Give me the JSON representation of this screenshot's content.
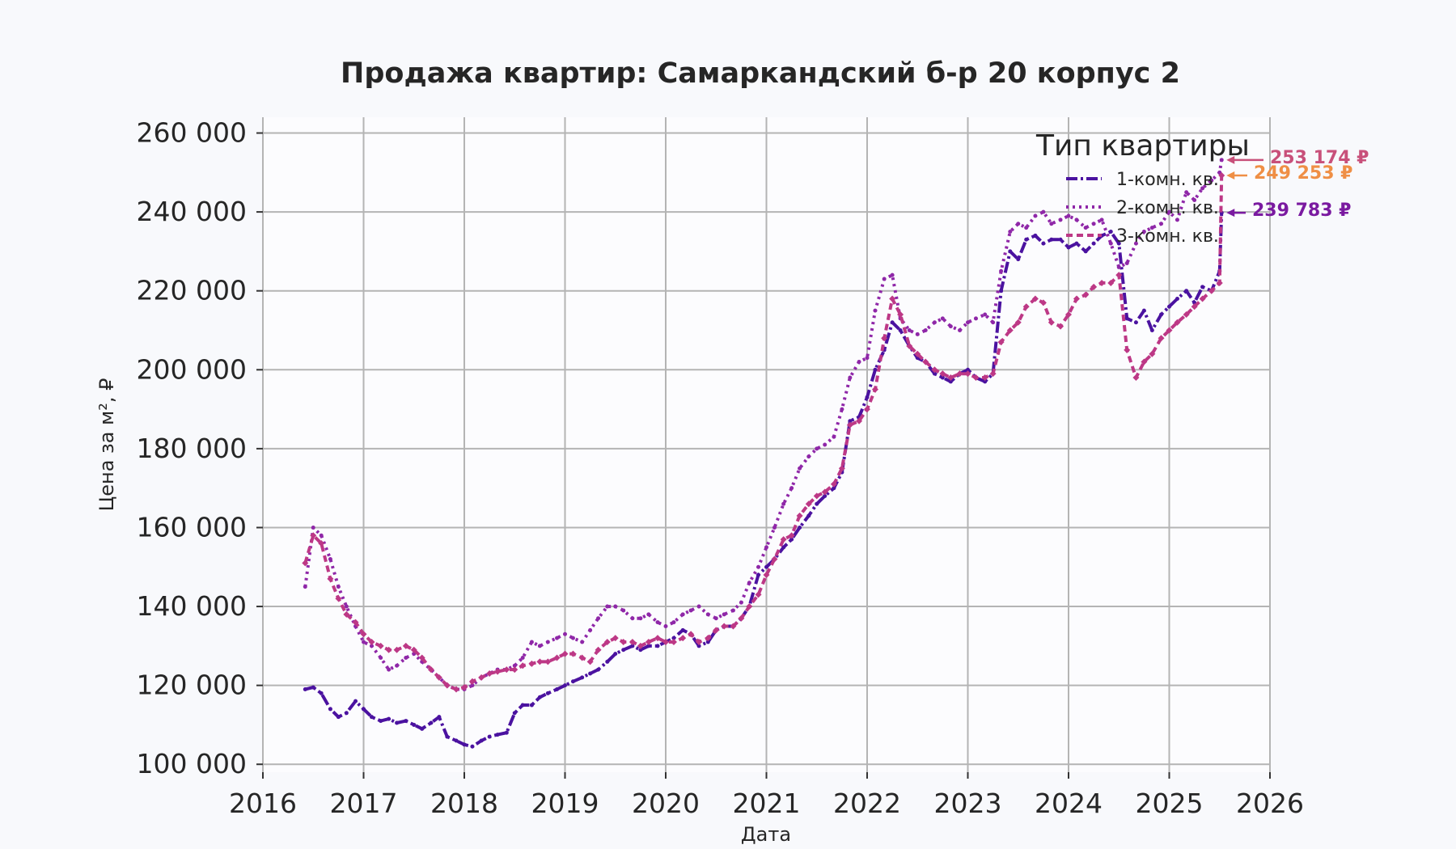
{
  "chart_data": {
    "type": "line",
    "title": "Продажа квартир: Самаркандский б-р 20 корпус 2",
    "xlabel": "Дата",
    "ylabel": "Цена за м², ₽",
    "xlim": [
      2016,
      2026
    ],
    "ylim": [
      98000,
      264000
    ],
    "x_ticks": [
      "2016",
      "2017",
      "2018",
      "2019",
      "2020",
      "2021",
      "2022",
      "2023",
      "2024",
      "2025",
      "2026"
    ],
    "y_ticks": [
      "100 000",
      "120 000",
      "140 000",
      "160 000",
      "180 000",
      "200 000",
      "220 000",
      "240 000",
      "260 000"
    ],
    "grid": true,
    "legend": {
      "title": "Тип квартиры",
      "placement": "top-right",
      "entries": [
        "1-комн. кв.",
        "2-комн. кв.",
        "3-комн. кв."
      ]
    },
    "series": [
      {
        "name": "1-комн. кв.",
        "color": "#4b12a0",
        "line_style": "dash-dot",
        "x": [
          2016.42,
          2016.5,
          2016.58,
          2016.67,
          2016.75,
          2016.83,
          2016.92,
          2017.0,
          2017.08,
          2017.17,
          2017.25,
          2017.33,
          2017.42,
          2017.5,
          2017.58,
          2017.67,
          2017.75,
          2017.83,
          2017.92,
          2018.0,
          2018.08,
          2018.17,
          2018.25,
          2018.33,
          2018.42,
          2018.5,
          2018.58,
          2018.67,
          2018.75,
          2018.83,
          2018.92,
          2019.0,
          2019.08,
          2019.17,
          2019.25,
          2019.33,
          2019.42,
          2019.5,
          2019.58,
          2019.67,
          2019.75,
          2019.83,
          2019.92,
          2020.0,
          2020.08,
          2020.17,
          2020.25,
          2020.33,
          2020.42,
          2020.5,
          2020.58,
          2020.67,
          2020.75,
          2020.83,
          2020.92,
          2021.0,
          2021.08,
          2021.17,
          2021.25,
          2021.33,
          2021.42,
          2021.5,
          2021.58,
          2021.67,
          2021.75,
          2021.83,
          2021.92,
          2022.0,
          2022.08,
          2022.17,
          2022.25,
          2022.33,
          2022.42,
          2022.5,
          2022.58,
          2022.67,
          2022.75,
          2022.83,
          2022.92,
          2023.0,
          2023.08,
          2023.17,
          2023.25,
          2023.33,
          2023.42,
          2023.5,
          2023.58,
          2023.67,
          2023.75,
          2023.83,
          2023.92,
          2024.0,
          2024.08,
          2024.17,
          2024.25,
          2024.33,
          2024.42,
          2024.5,
          2024.58,
          2024.67,
          2024.75,
          2024.83,
          2024.92,
          2025.0,
          2025.08,
          2025.17,
          2025.25,
          2025.33,
          2025.42,
          2025.5,
          2025.52
        ],
        "values": [
          119000,
          119500,
          118000,
          114000,
          112000,
          113000,
          116000,
          114000,
          112000,
          111000,
          111500,
          110500,
          111000,
          110000,
          109000,
          110500,
          112000,
          107000,
          106000,
          105000,
          104500,
          106000,
          107000,
          107500,
          108000,
          113000,
          115000,
          115000,
          117000,
          118000,
          119000,
          120000,
          121000,
          122000,
          123000,
          124000,
          126000,
          128000,
          129000,
          130000,
          129000,
          130000,
          130000,
          131000,
          132000,
          134000,
          133000,
          130000,
          131000,
          134000,
          135000,
          135000,
          137000,
          140000,
          148000,
          150000,
          152000,
          155000,
          157000,
          160000,
          163000,
          166000,
          168000,
          170000,
          174000,
          187000,
          188000,
          193000,
          200000,
          205000,
          212000,
          210000,
          206000,
          203000,
          202000,
          199000,
          198000,
          197000,
          199000,
          200000,
          198000,
          197000,
          199000,
          220000,
          230000,
          228000,
          233000,
          234000,
          232000,
          233000,
          233000,
          231000,
          232000,
          230000,
          232000,
          234000,
          235000,
          232000,
          213000,
          212000,
          215000,
          210000,
          214000,
          216000,
          218000,
          220000,
          217000,
          221000,
          220000,
          225000,
          239783
        ]
      },
      {
        "name": "2-комн. кв.",
        "color": "#8f27a8",
        "line_style": "dotted",
        "x": [
          2016.42,
          2016.5,
          2016.58,
          2016.67,
          2016.75,
          2016.83,
          2016.92,
          2017.0,
          2017.08,
          2017.17,
          2017.25,
          2017.33,
          2017.42,
          2017.5,
          2017.58,
          2017.67,
          2017.75,
          2017.83,
          2017.92,
          2018.0,
          2018.08,
          2018.17,
          2018.25,
          2018.33,
          2018.42,
          2018.5,
          2018.58,
          2018.67,
          2018.75,
          2018.83,
          2018.92,
          2019.0,
          2019.08,
          2019.17,
          2019.25,
          2019.33,
          2019.42,
          2019.5,
          2019.58,
          2019.67,
          2019.75,
          2019.83,
          2019.92,
          2020.0,
          2020.08,
          2020.17,
          2020.25,
          2020.33,
          2020.42,
          2020.5,
          2020.58,
          2020.67,
          2020.75,
          2020.83,
          2020.92,
          2021.0,
          2021.08,
          2021.17,
          2021.25,
          2021.33,
          2021.42,
          2021.5,
          2021.58,
          2021.67,
          2021.75,
          2021.83,
          2021.92,
          2022.0,
          2022.08,
          2022.17,
          2022.25,
          2022.33,
          2022.42,
          2022.5,
          2022.58,
          2022.67,
          2022.75,
          2022.83,
          2022.92,
          2023.0,
          2023.08,
          2023.17,
          2023.25,
          2023.33,
          2023.42,
          2023.5,
          2023.58,
          2023.67,
          2023.75,
          2023.83,
          2023.92,
          2024.0,
          2024.08,
          2024.17,
          2024.25,
          2024.33,
          2024.42,
          2024.5,
          2024.58,
          2024.67,
          2024.75,
          2024.83,
          2024.92,
          2025.0,
          2025.08,
          2025.17,
          2025.25,
          2025.33,
          2025.42,
          2025.5,
          2025.52
        ],
        "values": [
          145000,
          160000,
          158000,
          152000,
          145000,
          140000,
          135000,
          131000,
          130000,
          127000,
          124000,
          125000,
          127000,
          128000,
          126000,
          124000,
          122000,
          120000,
          119000,
          119000,
          120000,
          122000,
          123000,
          124000,
          124000,
          125000,
          127000,
          131000,
          130000,
          131000,
          132000,
          133000,
          132000,
          131000,
          134000,
          137000,
          140000,
          140000,
          139000,
          137000,
          137000,
          138000,
          136000,
          135000,
          136000,
          138000,
          139000,
          140000,
          138000,
          137000,
          138000,
          139000,
          141000,
          146000,
          150000,
          155000,
          160000,
          166000,
          170000,
          175000,
          178000,
          180000,
          181000,
          183000,
          190000,
          198000,
          202000,
          203000,
          215000,
          223000,
          224000,
          213000,
          210000,
          209000,
          210000,
          212000,
          213000,
          211000,
          210000,
          212000,
          213000,
          214000,
          212000,
          225000,
          235000,
          237000,
          236000,
          239000,
          240000,
          237000,
          238000,
          239000,
          238000,
          236000,
          237000,
          238000,
          232000,
          226000,
          227000,
          232000,
          235000,
          236000,
          237000,
          240000,
          238000,
          245000,
          243000,
          246000,
          248000,
          250000,
          253174
        ]
      },
      {
        "name": "3-комн. кв.",
        "color": "#bd3886",
        "line_style": "dashed-diamond",
        "x": [
          2016.42,
          2016.5,
          2016.58,
          2016.67,
          2016.75,
          2016.83,
          2016.92,
          2017.0,
          2017.08,
          2017.17,
          2017.25,
          2017.33,
          2017.42,
          2017.5,
          2017.58,
          2017.67,
          2017.75,
          2017.83,
          2017.92,
          2018.0,
          2018.08,
          2018.17,
          2018.25,
          2018.33,
          2018.42,
          2018.5,
          2018.58,
          2018.67,
          2018.75,
          2018.83,
          2018.92,
          2019.0,
          2019.08,
          2019.17,
          2019.25,
          2019.33,
          2019.42,
          2019.5,
          2019.58,
          2019.67,
          2019.75,
          2019.83,
          2019.92,
          2020.0,
          2020.08,
          2020.17,
          2020.25,
          2020.33,
          2020.42,
          2020.5,
          2020.58,
          2020.67,
          2020.75,
          2020.83,
          2020.92,
          2021.0,
          2021.08,
          2021.17,
          2021.25,
          2021.33,
          2021.42,
          2021.5,
          2021.58,
          2021.67,
          2021.75,
          2021.83,
          2021.92,
          2022.0,
          2022.08,
          2022.17,
          2022.25,
          2022.33,
          2022.42,
          2022.5,
          2022.58,
          2022.67,
          2022.75,
          2022.83,
          2022.92,
          2023.0,
          2023.08,
          2023.17,
          2023.25,
          2023.33,
          2023.42,
          2023.5,
          2023.58,
          2023.67,
          2023.75,
          2023.83,
          2023.92,
          2024.0,
          2024.08,
          2024.17,
          2024.25,
          2024.33,
          2024.42,
          2024.5,
          2024.58,
          2024.67,
          2024.75,
          2024.83,
          2024.92,
          2025.0,
          2025.08,
          2025.17,
          2025.25,
          2025.33,
          2025.42,
          2025.5,
          2025.52
        ],
        "values": [
          151000,
          158000,
          156000,
          147000,
          142000,
          138000,
          136000,
          133000,
          131000,
          130000,
          129000,
          129000,
          130000,
          129000,
          127000,
          124000,
          122000,
          120000,
          119000,
          119500,
          121000,
          122000,
          123000,
          123500,
          124000,
          124000,
          125000,
          125500,
          126000,
          126000,
          127000,
          128000,
          128000,
          127000,
          126000,
          129000,
          131000,
          132000,
          131000,
          131000,
          130000,
          131000,
          132000,
          131000,
          131000,
          132000,
          133000,
          131000,
          132000,
          134000,
          135000,
          135000,
          137000,
          140000,
          143000,
          148000,
          152000,
          157000,
          158000,
          163000,
          166000,
          168000,
          169000,
          171000,
          175000,
          186000,
          187000,
          190000,
          195000,
          208000,
          218000,
          214000,
          206000,
          204000,
          202000,
          200000,
          199000,
          198000,
          199000,
          199000,
          198000,
          198000,
          199000,
          207000,
          210000,
          212000,
          216000,
          218000,
          217000,
          212000,
          211000,
          214000,
          218000,
          219000,
          221000,
          222000,
          222000,
          224000,
          205000,
          198000,
          202000,
          204000,
          208000,
          210000,
          212000,
          214000,
          216000,
          218000,
          220000,
          222000,
          249253
        ]
      }
    ],
    "annotations": [
      {
        "text": "253 174 ₽",
        "color": "#c8507a",
        "value": 253174
      },
      {
        "text": "249 253 ₽",
        "color": "#ef8f45",
        "value": 249253
      },
      {
        "text": "239 783 ₽",
        "color": "#7a1aa0",
        "value": 239783
      }
    ]
  }
}
